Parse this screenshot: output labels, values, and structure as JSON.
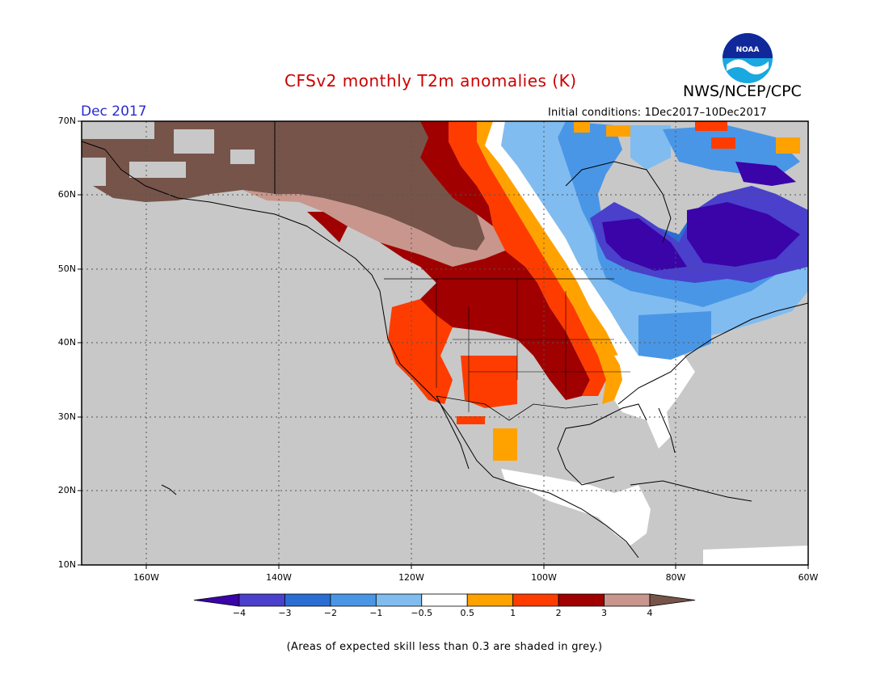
{
  "title": "CFSv2 monthly T2m anomalies (K)",
  "agency": "NWS/NCEP/CPC",
  "logo_text": "NOAA",
  "valid_month": "Dec 2017",
  "initial_conditions": "Initial conditions: 1Dec2017–10Dec2017",
  "lat_labels": [
    "70N",
    "60N",
    "50N",
    "40N",
    "30N",
    "20N",
    "10N"
  ],
  "lon_labels": [
    "160W",
    "140W",
    "120W",
    "100W",
    "80W",
    "60W"
  ],
  "colorbar": {
    "ticks": [
      "−4",
      "−3",
      "−2",
      "−1",
      "−0.5",
      "0.5",
      "1",
      "2",
      "3",
      "4"
    ],
    "colors": [
      "#3a04a8",
      "#4a40cc",
      "#2a6ed4",
      "#4a96e6",
      "#80bcf0",
      "#ffffff",
      "#ffa200",
      "#ff3c00",
      "#a00000",
      "#c8968c",
      "#76544a"
    ]
  },
  "footnote": "(Areas of expected skill less than 0.3 are shaded in grey.)",
  "colors": {
    "skill_grey": "#c8c8c8",
    "title_red": "#cc0000",
    "month_blue": "#2a2ad0"
  }
}
